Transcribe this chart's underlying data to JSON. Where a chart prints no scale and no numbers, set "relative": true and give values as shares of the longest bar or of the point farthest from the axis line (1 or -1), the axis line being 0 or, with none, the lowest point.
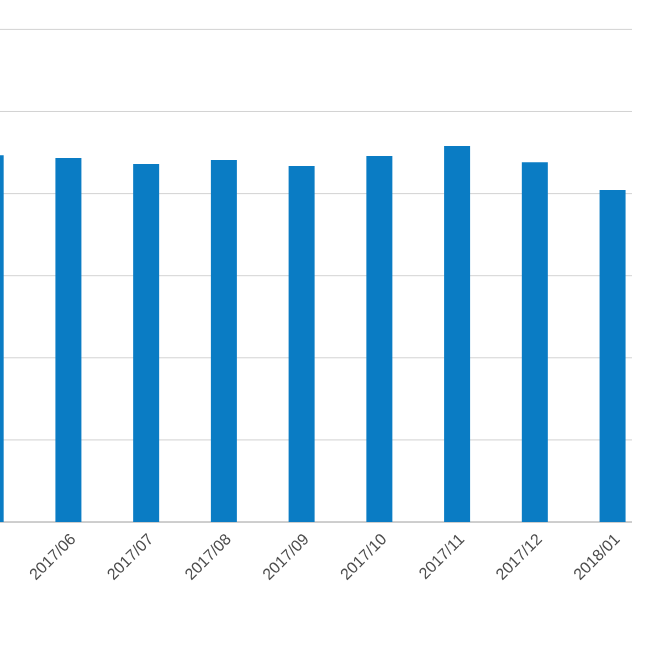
{
  "chart_data": {
    "type": "bar",
    "relative": true,
    "grid": "y",
    "color": "#0a7cc4",
    "categories": [
      null,
      "2017/06",
      "2017/07",
      "2017/08",
      "2017/09",
      "2017/10",
      "2017/11",
      "2017/12",
      "2018/01"
    ],
    "values": [
      0.975,
      0.968,
      0.952,
      0.963,
      0.947,
      0.973,
      1.0,
      0.957,
      0.883
    ]
  }
}
